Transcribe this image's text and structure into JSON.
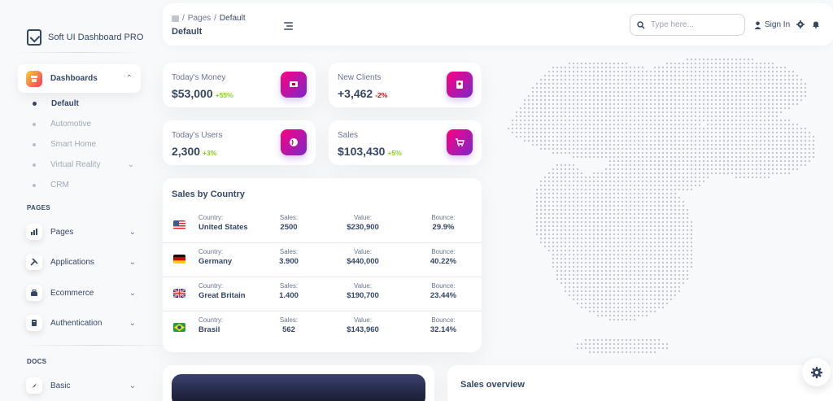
{
  "brand": {
    "name": "Soft UI Dashboard PRO"
  },
  "sidebar": {
    "dashboards_label": "Dashboards",
    "sub_items": [
      {
        "label": "Default",
        "active": true
      },
      {
        "label": "Automotive"
      },
      {
        "label": "Smart Home"
      },
      {
        "label": "Virtual Reality",
        "has_children": true
      },
      {
        "label": "CRM"
      }
    ],
    "pages_section": "PAGES",
    "pages_items": [
      {
        "label": "Pages",
        "icon": "bar-chart-icon"
      },
      {
        "label": "Applications",
        "icon": "tools-icon"
      },
      {
        "label": "Ecommerce",
        "icon": "basket-icon"
      },
      {
        "label": "Authentication",
        "icon": "document-icon"
      }
    ],
    "docs_section": "DOCS",
    "docs_items": [
      {
        "label": "Basic",
        "icon": "rocket-icon"
      }
    ]
  },
  "header": {
    "breadcrumb": [
      "Pages",
      "Default"
    ],
    "breadcrumb_sep": "/",
    "title": "Default",
    "search_placeholder": "Type here...",
    "signin_label": "Sign In"
  },
  "stats": [
    {
      "label": "Today's Money",
      "value": "$53,000",
      "delta": "+55%",
      "positive": true,
      "icon": "money-icon"
    },
    {
      "label": "New Clients",
      "value": "+3,462",
      "delta": "-2%",
      "positive": false,
      "icon": "clients-icon"
    },
    {
      "label": "Today's Users",
      "value": "2,300",
      "delta": "+3%",
      "positive": true,
      "icon": "globe-icon"
    },
    {
      "label": "Sales",
      "value": "$103,430",
      "delta": "+5%",
      "positive": true,
      "icon": "cart-icon"
    }
  ],
  "sales_by_country": {
    "title": "Sales by Country",
    "labels": {
      "country": "Country:",
      "sales": "Sales:",
      "value": "Value:",
      "bounce": "Bounce:"
    },
    "rows": [
      {
        "country": "United States",
        "sales": "2500",
        "value": "$230,900",
        "bounce": "29.9%",
        "flag": "us-flag-icon"
      },
      {
        "country": "Germany",
        "sales": "3.900",
        "value": "$440,000",
        "bounce": "40.22%",
        "flag": "de-flag-icon"
      },
      {
        "country": "Great Britain",
        "sales": "1.400",
        "value": "$190,700",
        "bounce": "23.44%",
        "flag": "gb-flag-icon"
      },
      {
        "country": "Brasil",
        "sales": "562",
        "value": "$143,960",
        "bounce": "32.14%",
        "flag": "br-flag-icon"
      }
    ]
  },
  "sales_overview": {
    "title": "Sales overview"
  },
  "colors": {
    "primary_text": "#344767",
    "secondary_text": "#67748e",
    "success": "#82d616",
    "danger": "#ea0606",
    "icon_gradient": [
      "#7928ca",
      "#ff0080"
    ],
    "active_gradient": [
      "#f5365c",
      "#fbcf33"
    ]
  }
}
